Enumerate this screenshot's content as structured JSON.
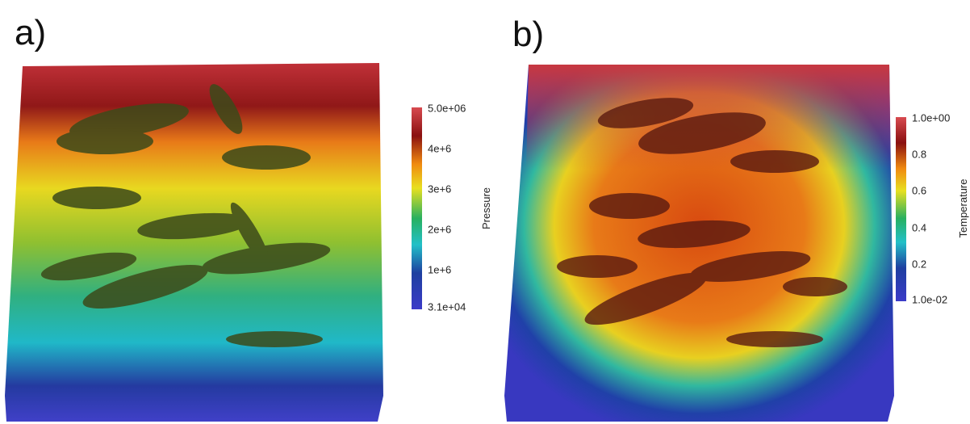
{
  "panels": [
    {
      "label": "a)",
      "colorbar": {
        "title": "Pressure",
        "ticks": [
          "5.0e+06",
          "4e+6",
          "3e+6",
          "2e+6",
          "1e+6",
          "3.1e+04"
        ]
      }
    },
    {
      "label": "b)",
      "colorbar": {
        "title": "Temperature",
        "ticks": [
          "1.0e+00",
          "0.8",
          "0.6",
          "0.4",
          "0.2",
          "1.0e-02"
        ]
      }
    }
  ]
}
